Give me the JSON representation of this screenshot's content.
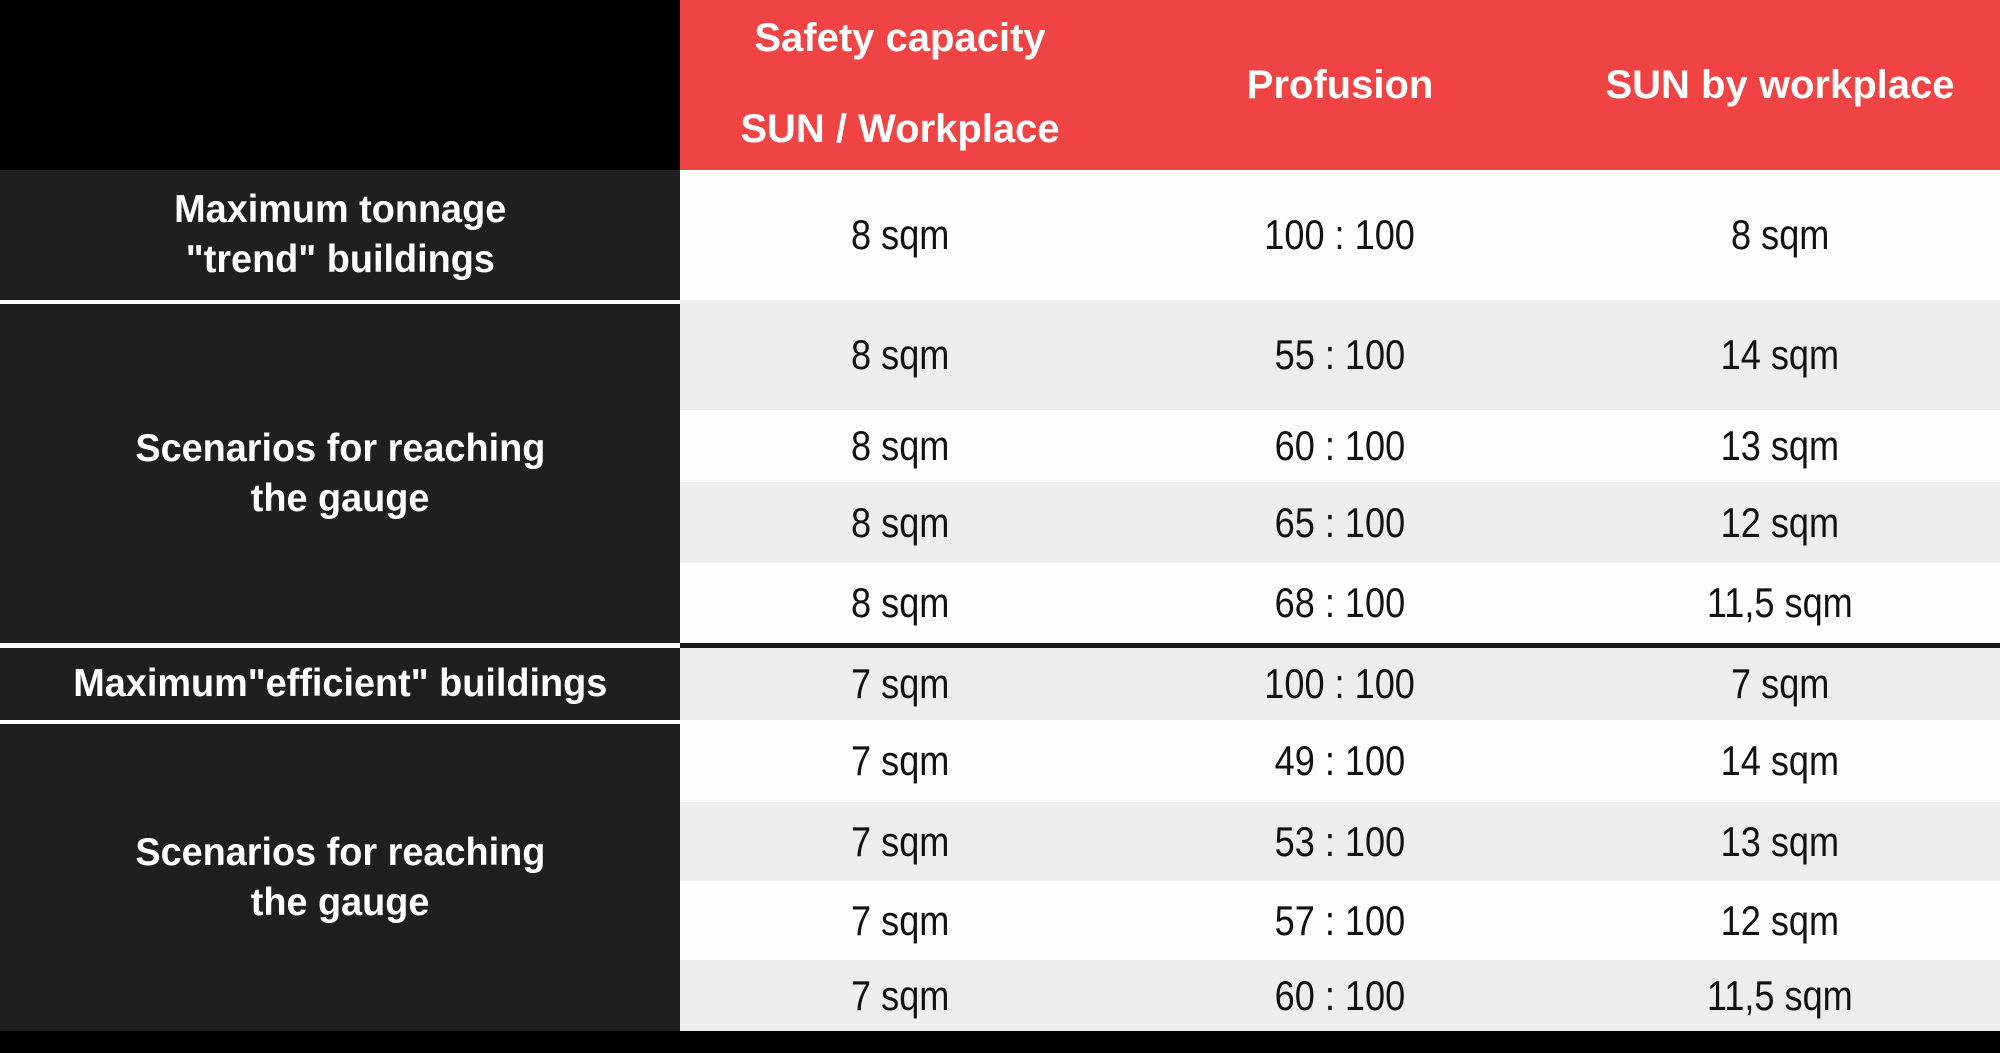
{
  "colors": {
    "header_red": "#F04343",
    "label_dark": "#1F1F1F",
    "row_white": "#FDFDFD",
    "row_gray": "#EDEDED",
    "background_black": "#000000",
    "divider_white": "#FFFFFF"
  },
  "header": {
    "capacity_line1": "Safety capacity",
    "capacity_line2": "SUN / Workplace",
    "profusion": "Profusion",
    "sun_by_workplace": "SUN by workplace"
  },
  "row_labels": {
    "trend_max_line1": "Maximum tonnage",
    "trend_max_line2": "\"trend\" buildings",
    "trend_scenarios_line1": "Scenarios for reaching",
    "trend_scenarios_line2": "the gauge",
    "efficient_max": "Maximum\"efficient\" buildings",
    "efficient_scenarios_line1": "Scenarios for reaching",
    "efficient_scenarios_line2": "the gauge"
  },
  "rows": [
    {
      "capacity": "8 sqm",
      "profusion": "100 : 100",
      "sun": "8 sqm"
    },
    {
      "capacity": "8 sqm",
      "profusion": "55 : 100",
      "sun": "14 sqm"
    },
    {
      "capacity": "8 sqm",
      "profusion": "60 : 100",
      "sun": "13 sqm"
    },
    {
      "capacity": "8 sqm",
      "profusion": "65 : 100",
      "sun": "12 sqm"
    },
    {
      "capacity": "8 sqm",
      "profusion": "68 : 100",
      "sun": "11,5 sqm"
    },
    {
      "capacity": "7 sqm",
      "profusion": "100 : 100",
      "sun": "7 sqm"
    },
    {
      "capacity": "7 sqm",
      "profusion": "49 : 100",
      "sun": "14 sqm"
    },
    {
      "capacity": "7 sqm",
      "profusion": "53 : 100",
      "sun": "13 sqm"
    },
    {
      "capacity": "7 sqm",
      "profusion": "57 : 100",
      "sun": "12 sqm"
    },
    {
      "capacity": "7 sqm",
      "profusion": "60 : 100",
      "sun": "11,5 sqm"
    }
  ],
  "chart_data": {
    "type": "table",
    "columns": [
      "",
      "Safety capacity SUN / Workplace",
      "Profusion",
      "SUN by workplace"
    ],
    "rows": [
      [
        "Maximum tonnage \"trend\" buildings",
        "8 sqm",
        "100 : 100",
        "8 sqm"
      ],
      [
        "Scenarios for reaching the gauge",
        "8 sqm",
        "55 : 100",
        "14 sqm"
      ],
      [
        "Scenarios for reaching the gauge",
        "8 sqm",
        "60 : 100",
        "13 sqm"
      ],
      [
        "Scenarios for reaching the gauge",
        "8 sqm",
        "65 : 100",
        "12 sqm"
      ],
      [
        "Scenarios for reaching the gauge",
        "8 sqm",
        "68 : 100",
        "11,5 sqm"
      ],
      [
        "Maximum\"efficient\" buildings",
        "7 sqm",
        "100 : 100",
        "7 sqm"
      ],
      [
        "Scenarios for reaching the gauge",
        "7 sqm",
        "49 : 100",
        "14 sqm"
      ],
      [
        "Scenarios for reaching the gauge",
        "7 sqm",
        "53 : 100",
        "13 sqm"
      ],
      [
        "Scenarios for reaching the gauge",
        "7 sqm",
        "57 : 100",
        "12 sqm"
      ],
      [
        "Scenarios for reaching the gauge",
        "7 sqm",
        "60 : 100",
        "11,5 sqm"
      ]
    ],
    "layout": {
      "header_background": "#F04343",
      "row_label_background": "#1F1F1F",
      "zebra_striping": true,
      "section_breaks_after_rows": [
        4
      ]
    }
  }
}
